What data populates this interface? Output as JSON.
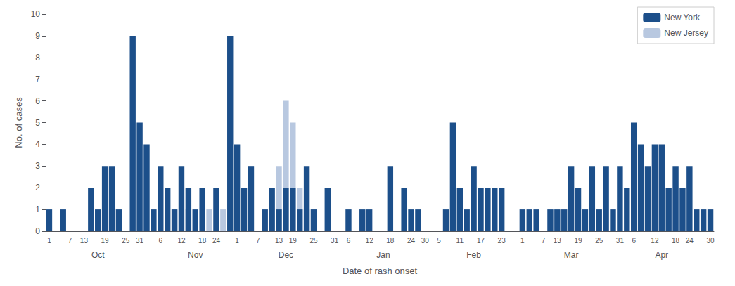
{
  "chart_data": {
    "type": "bar",
    "xlabel": "Date of rash onset",
    "ylabel": "No. of cases",
    "categories": [
      "1",
      null,
      null,
      "7",
      null,
      "13",
      null,
      null,
      "19",
      null,
      null,
      "25",
      null,
      "31",
      null,
      null,
      "6",
      null,
      null,
      "12",
      null,
      null,
      "18",
      null,
      "24",
      null,
      null,
      "1",
      null,
      null,
      "7",
      null,
      null,
      "13",
      null,
      "19",
      null,
      null,
      "25",
      null,
      null,
      "31",
      null,
      "6",
      null,
      null,
      "12",
      null,
      null,
      "18",
      null,
      null,
      "24",
      null,
      "30",
      null,
      "5",
      null,
      null,
      "11",
      null,
      null,
      "17",
      null,
      null,
      "23",
      null,
      null,
      "1",
      null,
      null,
      "7",
      null,
      "13",
      null,
      null,
      "19",
      null,
      null,
      "25",
      null,
      null,
      "31",
      null,
      "6",
      null,
      null,
      "12",
      null,
      null,
      "18",
      null,
      "24",
      null,
      null,
      "30"
    ],
    "month_categories": [
      null,
      null,
      null,
      null,
      null,
      null,
      null,
      "Oct",
      null,
      null,
      null,
      null,
      null,
      null,
      null,
      null,
      null,
      null,
      null,
      null,
      null,
      "Nov",
      null,
      null,
      null,
      null,
      null,
      null,
      null,
      null,
      null,
      null,
      null,
      null,
      "Dec",
      null,
      null,
      null,
      null,
      null,
      null,
      null,
      null,
      null,
      null,
      null,
      null,
      null,
      "Jan",
      null,
      null,
      null,
      null,
      null,
      null,
      null,
      null,
      null,
      null,
      null,
      null,
      "Feb",
      null,
      null,
      null,
      null,
      null,
      null,
      null,
      null,
      null,
      null,
      null,
      null,
      null,
      "Mar",
      null,
      null,
      null,
      null,
      null,
      null,
      null,
      null,
      null,
      null,
      null,
      null,
      "Apr",
      null,
      null,
      null,
      null,
      null,
      null,
      null
    ],
    "series": [
      {
        "name": "New York",
        "color": "#1c4f8a",
        "values": [
          1,
          0,
          1,
          0,
          0,
          0,
          2,
          1,
          3,
          3,
          1,
          0,
          9,
          5,
          4,
          1,
          3,
          2,
          1,
          3,
          2,
          1,
          2,
          0,
          2,
          0,
          9,
          4,
          2,
          3,
          0,
          1,
          2,
          1,
          2,
          2,
          1,
          3,
          1,
          0,
          2,
          0,
          0,
          1,
          0,
          1,
          1,
          0,
          0,
          3,
          0,
          2,
          1,
          1,
          0,
          0,
          0,
          1,
          5,
          2,
          1,
          3,
          2,
          2,
          2,
          2,
          0,
          0,
          1,
          1,
          1,
          0,
          1,
          1,
          1,
          3,
          2,
          1,
          3,
          1,
          3,
          1,
          3,
          2,
          5,
          4,
          3,
          4,
          4,
          2,
          3,
          2,
          3,
          1,
          1,
          1
        ]
      },
      {
        "name": "New Jersey",
        "color": "#b8c8e0",
        "values": [
          0,
          0,
          0,
          0,
          0,
          0,
          0,
          0,
          0,
          0,
          0,
          0,
          0,
          0,
          0,
          0,
          0,
          0,
          1,
          0,
          1,
          0,
          0,
          1,
          0,
          1,
          0,
          0,
          0,
          3,
          0,
          0,
          2,
          3,
          6,
          5,
          2,
          1,
          1,
          0,
          0,
          0,
          0,
          0,
          0,
          0,
          0,
          0,
          0,
          0,
          0,
          0,
          0,
          0,
          0,
          0,
          0,
          0,
          0,
          0,
          0,
          0,
          0,
          0,
          0,
          0,
          0,
          0,
          0,
          0,
          0,
          0,
          0,
          0,
          0,
          0,
          0,
          0,
          0,
          0,
          0,
          0,
          0,
          0,
          0,
          0,
          0,
          0,
          0,
          0,
          0,
          0,
          0,
          0,
          0,
          0
        ]
      }
    ],
    "ylim": [
      0,
      10
    ],
    "yticks": [
      0,
      1,
      2,
      3,
      4,
      5,
      6,
      7,
      8,
      9,
      10
    ],
    "grid": false,
    "legend": "upper right",
    "stacked": false
  }
}
